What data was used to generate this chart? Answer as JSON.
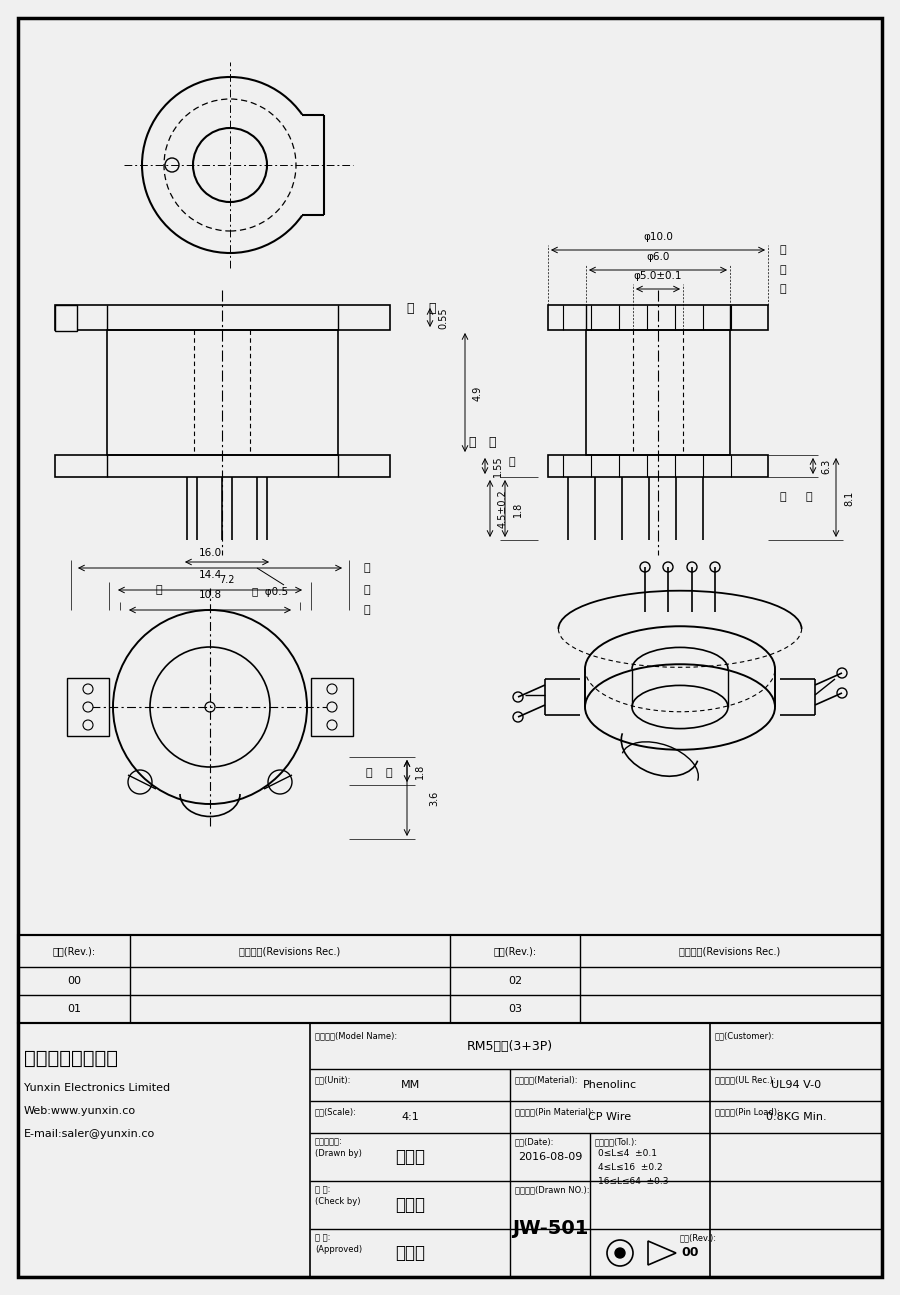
{
  "bg_color": "#f0f0f0",
  "draw_bg": "#f0f0f0",
  "lc": "#000000",
  "company_cn": "云芊电子有限公司",
  "company_en": "Yunxin Electronics Limited",
  "web": "Web:www.yunxin.co",
  "email": "E-mail:saler@yunxin.co",
  "model_label": "规格描述(Model Name):",
  "model_value": "RM5立式(3+3P)",
  "unit_label": "单位(Unit):",
  "unit_value": "MM",
  "mat_label": "本体材质(Material):",
  "mat_value": "Phenolinc",
  "fire_label": "防火等级(UL Rec.):",
  "fire_value": "UL94 V-0",
  "scale_label": "比例(Scale):",
  "scale_value": "4:1",
  "pinmat_label": "针脚材质(Pin Material):",
  "pinmat_value": "CP Wire",
  "pinload_label": "针脚拉力(Pin Load):",
  "pinload_value": "0.8KG Min.",
  "drawn_label1": "工程与设计:",
  "drawn_label2": "(Drawn by)",
  "drawn_value": "刘水强",
  "date_label": "日期(Date):",
  "date_value": "2016-08-09",
  "tol_label": "一般公差(Tol.):",
  "tol1": "0≤L≤4  ±0.1",
  "tol2": "4≤L≤16  ±0.2",
  "tol3": "16≤L≤64  ±0.3",
  "check_label1": "校 对:",
  "check_label2": "(Check by)",
  "check_value": "韦景川",
  "drawnno_label": "产品编号(Drawn NO.):",
  "drawnno_value": "JW-501",
  "appr_label1": "核 准:",
  "appr_label2": "(Approved)",
  "appr_value": "张生坤",
  "rev_label": "版本(Rev.):",
  "rev_value": "00",
  "cust_label": "客户(Customer):",
  "rev_hdr1": "版本(Rev.):",
  "rev_hdr2": "修改记录(Revisions Rec.)",
  "rev_rows": [
    [
      "00",
      ""
    ],
    [
      "01",
      ""
    ],
    [
      "02",
      ""
    ],
    [
      "03",
      ""
    ]
  ]
}
